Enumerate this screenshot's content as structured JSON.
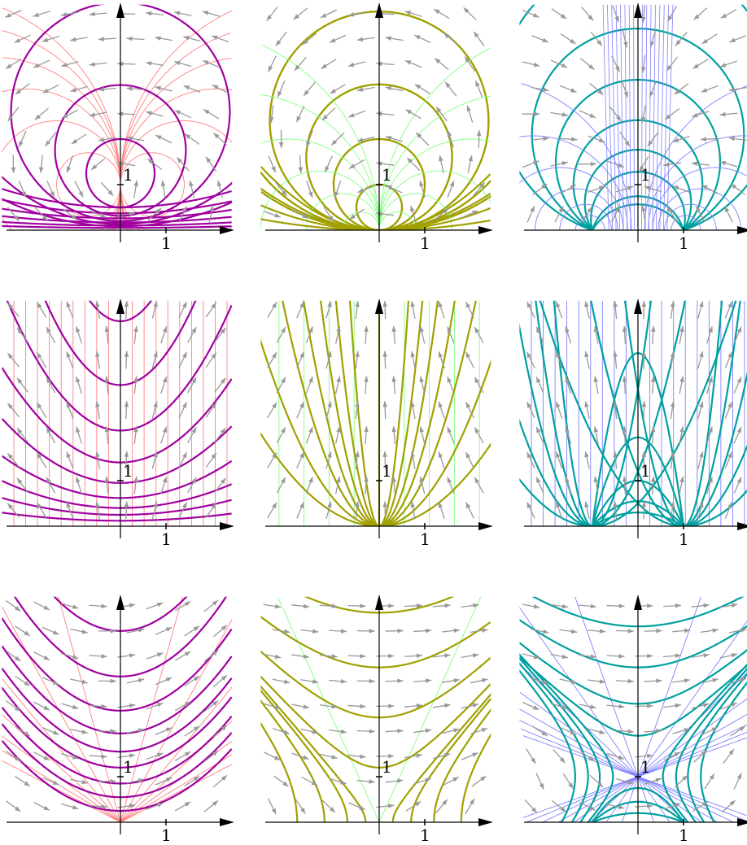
{
  "figure": {
    "panel_rows": 3,
    "panel_cols": 3,
    "rows": [
      {
        "row": 1,
        "panels": [
          {
            "id": "r1c1",
            "color_scheme": "purple",
            "tick_x": "1",
            "tick_y": "1"
          },
          {
            "id": "r1c2",
            "color_scheme": "olive",
            "tick_x": "1",
            "tick_y": "1"
          },
          {
            "id": "r1c3",
            "color_scheme": "teal",
            "tick_x": "1",
            "tick_y": "1"
          }
        ]
      },
      {
        "row": 2,
        "panels": [
          {
            "id": "r2c1",
            "color_scheme": "purple",
            "tick_x": "1",
            "tick_y": "1"
          },
          {
            "id": "r2c2",
            "color_scheme": "olive",
            "tick_x": "1",
            "tick_y": "1"
          },
          {
            "id": "r2c3",
            "color_scheme": "teal",
            "tick_x": "1",
            "tick_y": "1"
          }
        ]
      },
      {
        "row": 3,
        "panels": [
          {
            "id": "r3c1",
            "color_scheme": "purple",
            "tick_x": "1",
            "tick_y": "1"
          },
          {
            "id": "r3c2",
            "color_scheme": "olive",
            "tick_x": "1",
            "tick_y": "1"
          },
          {
            "id": "r3c3",
            "color_scheme": "teal",
            "tick_x": "1",
            "tick_y": "1"
          }
        ]
      }
    ],
    "colors": {
      "purple_curve": "#a000a0",
      "purple_field": "#ff8080",
      "olive_curve": "#a0a000",
      "olive_field": "#80ff80",
      "teal_curve": "#00a0a0",
      "teal_field": "#8080ff",
      "arrow": "#999999",
      "axis": "#000000"
    }
  }
}
